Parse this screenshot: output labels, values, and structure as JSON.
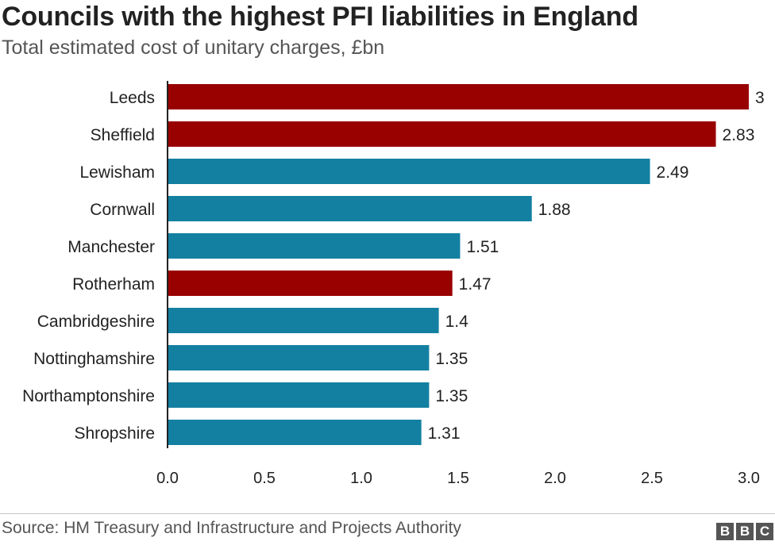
{
  "header": {
    "title": "Councils with the highest PFI liabilities in England",
    "subtitle": "Total estimated cost of unitary charges, £bn"
  },
  "footer": {
    "source": "Source: HM Treasury and Infrastructure and Projects Authority",
    "logo_letters": [
      "B",
      "B",
      "C"
    ]
  },
  "colors": {
    "highlight": "#990000",
    "default": "#1380a1"
  },
  "chart_data": {
    "type": "bar",
    "orientation": "horizontal",
    "title": "Councils with the highest PFI liabilities in England",
    "subtitle": "Total estimated cost of unitary charges, £bn",
    "categories": [
      "Leeds",
      "Sheffield",
      "Lewisham",
      "Cornwall",
      "Manchester",
      "Rotherham",
      "Cambridgeshire",
      "Nottinghamshire",
      "Northamptonshire",
      "Shropshire"
    ],
    "values": [
      3,
      2.83,
      2.49,
      1.88,
      1.51,
      1.47,
      1.4,
      1.35,
      1.35,
      1.31
    ],
    "value_labels": [
      "3",
      "2.83",
      "2.49",
      "1.88",
      "1.51",
      "1.47",
      "1.4",
      "1.35",
      "1.35",
      "1.31"
    ],
    "highlighted": [
      true,
      true,
      false,
      false,
      false,
      true,
      false,
      false,
      false,
      false
    ],
    "xlim": [
      0,
      3
    ],
    "x_ticks": [
      "0.0",
      "0.5",
      "1.0",
      "1.5",
      "2.0",
      "2.5",
      "3.0"
    ],
    "grid": false,
    "legend": "none"
  }
}
